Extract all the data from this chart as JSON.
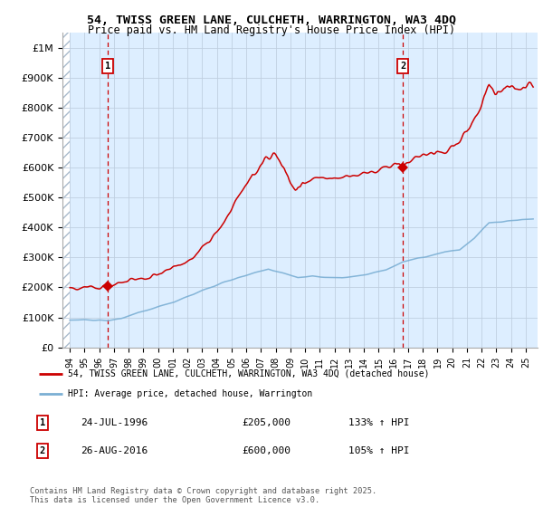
{
  "title_line1": "54, TWISS GREEN LANE, CULCHETH, WARRINGTON, WA3 4DQ",
  "title_line2": "Price paid vs. HM Land Registry's House Price Index (HPI)",
  "ylabel_ticks": [
    "£0",
    "£100K",
    "£200K",
    "£300K",
    "£400K",
    "£500K",
    "£600K",
    "£700K",
    "£800K",
    "£900K",
    "£1M"
  ],
  "ytick_values": [
    0,
    100000,
    200000,
    300000,
    400000,
    500000,
    600000,
    700000,
    800000,
    900000,
    1000000
  ],
  "ylim": [
    0,
    1050000
  ],
  "xlim_start": 1993.5,
  "xlim_end": 2025.8,
  "sale1_date": 1996.56,
  "sale1_price": 205000,
  "sale1_label": "1",
  "sale2_date": 2016.65,
  "sale2_price": 600000,
  "sale2_label": "2",
  "legend_line1": "54, TWISS GREEN LANE, CULCHETH, WARRINGTON, WA3 4DQ (detached house)",
  "legend_line2": "HPI: Average price, detached house, Warrington",
  "annotation1_date": "24-JUL-1996",
  "annotation1_price": "£205,000",
  "annotation1_hpi": "133% ↑ HPI",
  "annotation2_date": "26-AUG-2016",
  "annotation2_price": "£600,000",
  "annotation2_hpi": "105% ↑ HPI",
  "footer": "Contains HM Land Registry data © Crown copyright and database right 2025.\nThis data is licensed under the Open Government Licence v3.0.",
  "hpi_color": "#7bafd4",
  "price_color": "#cc0000",
  "bg_color": "#ddeeff",
  "hatch_color": "#bbccdd",
  "grid_color": "#c0cfe0"
}
